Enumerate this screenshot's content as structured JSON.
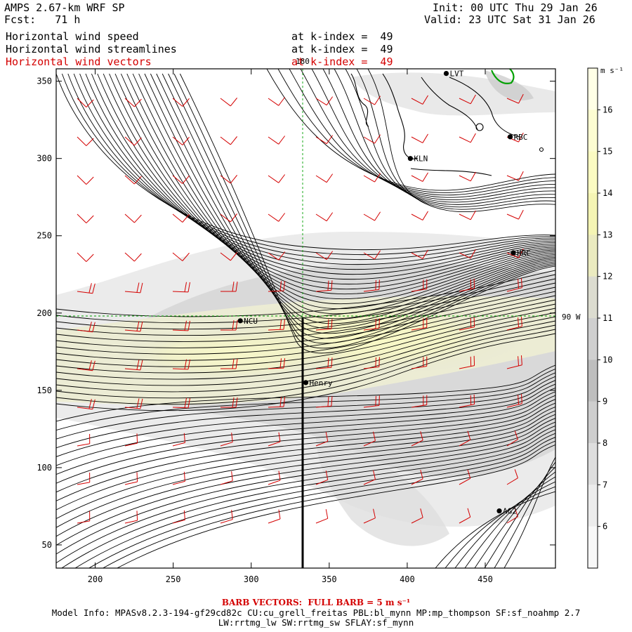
{
  "header": {
    "title": "AMPS 2.67-km WRF SP",
    "forecast": "Fcst:   71 h",
    "init": "Init: 00 UTC Thu 29 Jan 26",
    "valid": "Valid: 23 UTC Sat 31 Jan 26",
    "fields": [
      {
        "label": "Horizontal wind speed",
        "level": "at k-index =  49"
      },
      {
        "label": "Horizontal wind streamlines",
        "level": "at k-index =  49"
      },
      {
        "label": "Horizontal wind vectors",
        "level": "at k-index =  49"
      }
    ]
  },
  "map": {
    "x_ticks": [
      "200",
      "250",
      "300",
      "350",
      "400",
      "450"
    ],
    "y_ticks": [
      "350",
      "300",
      "250",
      "200",
      "150",
      "100",
      "50"
    ],
    "meridian_label": "180",
    "parallel_label": "90 W",
    "stations": [
      {
        "name": "LVT",
        "x": 425,
        "y": 355
      },
      {
        "name": "RBC",
        "x": 466,
        "y": 314
      },
      {
        "name": "KLN",
        "x": 402,
        "y": 300
      },
      {
        "name": "HRC",
        "x": 468,
        "y": 239
      },
      {
        "name": "NCU",
        "x": 293,
        "y": 195
      },
      {
        "name": "Henry",
        "x": 335,
        "y": 155
      },
      {
        "name": "AG2",
        "x": 459,
        "y": 72
      }
    ],
    "xlim": [
      175,
      495
    ],
    "ylim": [
      35,
      358
    ]
  },
  "colorbar": {
    "units": "m s⁻¹",
    "labels": [
      "16",
      "15",
      "14",
      "13",
      "12",
      "11",
      "10",
      "9",
      "8",
      "7",
      "6"
    ],
    "colors": [
      "#ffffe6",
      "#fdfdd2",
      "#fbfbc2",
      "#f5f5b4",
      "#ebebc0",
      "#dcdcd0",
      "#cfcfcf",
      "#bebebe",
      "#cecece",
      "#dedede",
      "#ececec",
      "#f8f8f8"
    ]
  },
  "footer": {
    "barb_note": "BARB VECTORS:  FULL BARB = 5 m s⁻¹",
    "model_info": "Model Info: MPASv8.2.3-194-gf29cd82c CU:cu_grell_freitas PBL:bl_mynn MP:mp_thompson SF:sf_noahmp 2.7",
    "model_info_2": "LW:rrtmg_lw SW:rrtmg_sw SFLAY:sf_mynn"
  }
}
